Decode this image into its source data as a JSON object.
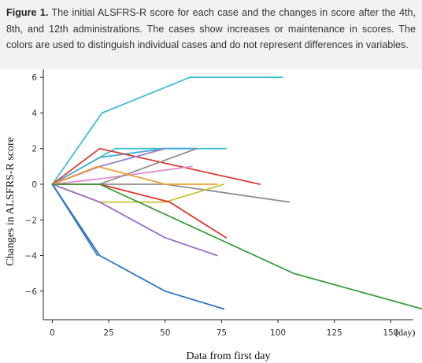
{
  "caption": {
    "label": "Figure 1.",
    "text": "The initial ALSFRS-R score for each case and the changes in score after the 4th, 8th, and 12th administrations. The cases show increases or maintenance in scores. The colors are used to distinguish individual cases and do not represent differences in variables."
  },
  "chart_data": {
    "type": "line",
    "title": "",
    "xlabel": "Data from first day",
    "x_unit": "(day)",
    "ylabel": "Changes in ALSFRS-R score",
    "xlim": [
      -4,
      160
    ],
    "ylim": [
      -7.6,
      6.45
    ],
    "x_ticks": [
      0,
      25,
      50,
      75,
      100,
      125,
      150
    ],
    "y_ticks": [
      -6,
      -4,
      -2,
      0,
      2,
      4,
      6
    ],
    "grid": false,
    "series": [
      {
        "color": "#3ebfd4",
        "x": [
          0,
          22,
          61,
          102
        ],
        "y": [
          0,
          4,
          6,
          6
        ]
      },
      {
        "color": "#41c2c9",
        "x": [
          0,
          28,
          77
        ],
        "y": [
          0,
          2,
          2
        ]
      },
      {
        "color": "#48a9dc",
        "x": [
          0,
          21,
          50,
          63
        ],
        "y": [
          0,
          1.5,
          2,
          2
        ]
      },
      {
        "color": "#d9403c",
        "x": [
          0,
          21,
          92
        ],
        "y": [
          0,
          2,
          0
        ]
      },
      {
        "color": "#9c7fd1",
        "x": [
          0,
          21,
          50
        ],
        "y": [
          0,
          1,
          2
        ]
      },
      {
        "color": "#e58ad3",
        "x": [
          0,
          21,
          62
        ],
        "y": [
          0,
          0.3,
          1
        ]
      },
      {
        "color": "#8f8f8f",
        "x": [
          0,
          21,
          64
        ],
        "y": [
          0,
          0,
          2
        ]
      },
      {
        "color": "#8f8f8f",
        "x": [
          0,
          50,
          105
        ],
        "y": [
          0,
          0,
          -1
        ]
      },
      {
        "color": "#f0a033",
        "x": [
          0,
          20,
          50,
          73
        ],
        "y": [
          0,
          1,
          0,
          0
        ]
      },
      {
        "color": "#c8c239",
        "x": [
          0,
          21,
          50,
          76
        ],
        "y": [
          0,
          -1,
          -1,
          0
        ]
      },
      {
        "color": "#e0342a",
        "x": [
          0,
          21,
          52,
          77
        ],
        "y": [
          0,
          0,
          -1,
          -3
        ]
      },
      {
        "color": "#9b6fc9",
        "x": [
          0,
          21,
          50,
          73
        ],
        "y": [
          0,
          -1,
          -3,
          -4
        ]
      },
      {
        "color": "#3b9f3b",
        "x": [
          0,
          21,
          107,
          164
        ],
        "y": [
          0,
          0,
          -5,
          -7
        ]
      },
      {
        "color": "#3f7fc4",
        "x": [
          0,
          20
        ],
        "y": [
          0,
          -4
        ]
      },
      {
        "color": "#2f74c0",
        "x": [
          0,
          21,
          50,
          76
        ],
        "y": [
          0,
          -4,
          -6,
          -7
        ]
      }
    ]
  }
}
